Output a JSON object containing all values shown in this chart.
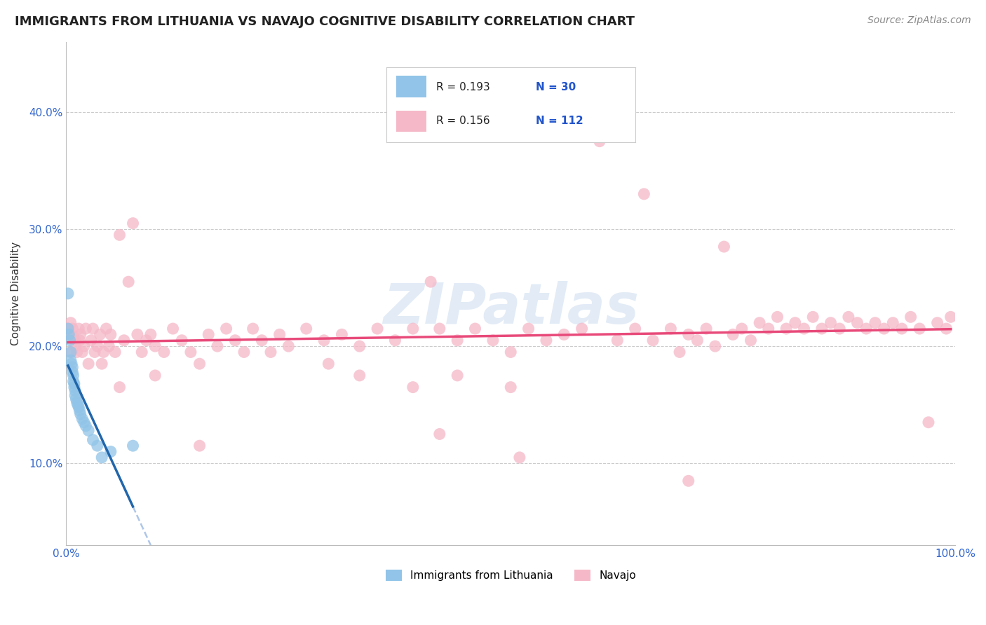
{
  "title": "IMMIGRANTS FROM LITHUANIA VS NAVAJO COGNITIVE DISABILITY CORRELATION CHART",
  "source": "Source: ZipAtlas.com",
  "ylabel": "Cognitive Disability",
  "legend_label1": "Immigrants from Lithuania",
  "legend_label2": "Navajo",
  "xlim": [
    0.0,
    1.0
  ],
  "ylim": [
    0.03,
    0.46
  ],
  "yticks": [
    0.1,
    0.2,
    0.3,
    0.4
  ],
  "ytick_labels": [
    "10.0%",
    "20.0%",
    "30.0%",
    "40.0%"
  ],
  "xtick_labels": [
    "0.0%",
    "100.0%"
  ],
  "blue_scatter": [
    [
      0.002,
      0.215
    ],
    [
      0.003,
      0.21
    ],
    [
      0.004,
      0.205
    ],
    [
      0.005,
      0.195
    ],
    [
      0.005,
      0.188
    ],
    [
      0.006,
      0.185
    ],
    [
      0.007,
      0.182
    ],
    [
      0.007,
      0.178
    ],
    [
      0.008,
      0.175
    ],
    [
      0.008,
      0.17
    ],
    [
      0.009,
      0.168
    ],
    [
      0.009,
      0.165
    ],
    [
      0.01,
      0.162
    ],
    [
      0.01,
      0.158
    ],
    [
      0.011,
      0.155
    ],
    [
      0.012,
      0.152
    ],
    [
      0.013,
      0.15
    ],
    [
      0.014,
      0.148
    ],
    [
      0.015,
      0.145
    ],
    [
      0.016,
      0.142
    ],
    [
      0.018,
      0.138
    ],
    [
      0.02,
      0.135
    ],
    [
      0.022,
      0.132
    ],
    [
      0.025,
      0.128
    ],
    [
      0.03,
      0.12
    ],
    [
      0.035,
      0.115
    ],
    [
      0.04,
      0.105
    ],
    [
      0.002,
      0.245
    ],
    [
      0.05,
      0.11
    ],
    [
      0.075,
      0.115
    ]
  ],
  "pink_scatter": [
    [
      0.002,
      0.215
    ],
    [
      0.004,
      0.21
    ],
    [
      0.005,
      0.22
    ],
    [
      0.006,
      0.195
    ],
    [
      0.007,
      0.215
    ],
    [
      0.008,
      0.208
    ],
    [
      0.01,
      0.205
    ],
    [
      0.01,
      0.2
    ],
    [
      0.012,
      0.195
    ],
    [
      0.014,
      0.215
    ],
    [
      0.015,
      0.205
    ],
    [
      0.016,
      0.21
    ],
    [
      0.018,
      0.195
    ],
    [
      0.02,
      0.2
    ],
    [
      0.022,
      0.215
    ],
    [
      0.025,
      0.185
    ],
    [
      0.028,
      0.205
    ],
    [
      0.03,
      0.215
    ],
    [
      0.032,
      0.195
    ],
    [
      0.035,
      0.2
    ],
    [
      0.038,
      0.21
    ],
    [
      0.04,
      0.185
    ],
    [
      0.042,
      0.195
    ],
    [
      0.045,
      0.215
    ],
    [
      0.048,
      0.2
    ],
    [
      0.05,
      0.21
    ],
    [
      0.055,
      0.195
    ],
    [
      0.06,
      0.295
    ],
    [
      0.065,
      0.205
    ],
    [
      0.07,
      0.255
    ],
    [
      0.075,
      0.305
    ],
    [
      0.08,
      0.21
    ],
    [
      0.085,
      0.195
    ],
    [
      0.09,
      0.205
    ],
    [
      0.095,
      0.21
    ],
    [
      0.1,
      0.2
    ],
    [
      0.11,
      0.195
    ],
    [
      0.12,
      0.215
    ],
    [
      0.13,
      0.205
    ],
    [
      0.14,
      0.195
    ],
    [
      0.15,
      0.185
    ],
    [
      0.16,
      0.21
    ],
    [
      0.17,
      0.2
    ],
    [
      0.18,
      0.215
    ],
    [
      0.19,
      0.205
    ],
    [
      0.2,
      0.195
    ],
    [
      0.21,
      0.215
    ],
    [
      0.22,
      0.205
    ],
    [
      0.23,
      0.195
    ],
    [
      0.24,
      0.21
    ],
    [
      0.25,
      0.2
    ],
    [
      0.27,
      0.215
    ],
    [
      0.29,
      0.205
    ],
    [
      0.31,
      0.21
    ],
    [
      0.33,
      0.2
    ],
    [
      0.35,
      0.215
    ],
    [
      0.37,
      0.205
    ],
    [
      0.39,
      0.215
    ],
    [
      0.41,
      0.255
    ],
    [
      0.42,
      0.215
    ],
    [
      0.44,
      0.205
    ],
    [
      0.46,
      0.215
    ],
    [
      0.48,
      0.205
    ],
    [
      0.5,
      0.195
    ],
    [
      0.51,
      0.105
    ],
    [
      0.52,
      0.215
    ],
    [
      0.54,
      0.205
    ],
    [
      0.56,
      0.21
    ],
    [
      0.58,
      0.215
    ],
    [
      0.6,
      0.375
    ],
    [
      0.62,
      0.205
    ],
    [
      0.64,
      0.215
    ],
    [
      0.65,
      0.33
    ],
    [
      0.66,
      0.205
    ],
    [
      0.68,
      0.215
    ],
    [
      0.69,
      0.195
    ],
    [
      0.7,
      0.21
    ],
    [
      0.71,
      0.205
    ],
    [
      0.72,
      0.215
    ],
    [
      0.73,
      0.2
    ],
    [
      0.74,
      0.285
    ],
    [
      0.75,
      0.21
    ],
    [
      0.76,
      0.215
    ],
    [
      0.77,
      0.205
    ],
    [
      0.78,
      0.22
    ],
    [
      0.79,
      0.215
    ],
    [
      0.8,
      0.225
    ],
    [
      0.81,
      0.215
    ],
    [
      0.82,
      0.22
    ],
    [
      0.83,
      0.215
    ],
    [
      0.84,
      0.225
    ],
    [
      0.85,
      0.215
    ],
    [
      0.86,
      0.22
    ],
    [
      0.87,
      0.215
    ],
    [
      0.88,
      0.225
    ],
    [
      0.89,
      0.22
    ],
    [
      0.9,
      0.215
    ],
    [
      0.91,
      0.22
    ],
    [
      0.92,
      0.215
    ],
    [
      0.93,
      0.22
    ],
    [
      0.94,
      0.215
    ],
    [
      0.95,
      0.225
    ],
    [
      0.96,
      0.215
    ],
    [
      0.97,
      0.135
    ],
    [
      0.98,
      0.22
    ],
    [
      0.99,
      0.215
    ],
    [
      0.995,
      0.225
    ],
    [
      0.1,
      0.175
    ],
    [
      0.06,
      0.165
    ],
    [
      0.42,
      0.125
    ],
    [
      0.7,
      0.085
    ],
    [
      0.5,
      0.165
    ],
    [
      0.33,
      0.175
    ],
    [
      0.15,
      0.115
    ],
    [
      0.39,
      0.165
    ],
    [
      0.44,
      0.175
    ],
    [
      0.295,
      0.185
    ]
  ],
  "blue_color": "#91c4e8",
  "pink_color": "#f5b8c8",
  "blue_line_color": "#2166ac",
  "pink_line_color": "#e84a7a",
  "dashed_color": "#aec6e8",
  "watermark_color": "#d0dff0",
  "title_fontsize": 13,
  "source_fontsize": 10,
  "tick_fontsize": 11,
  "ylabel_fontsize": 11
}
